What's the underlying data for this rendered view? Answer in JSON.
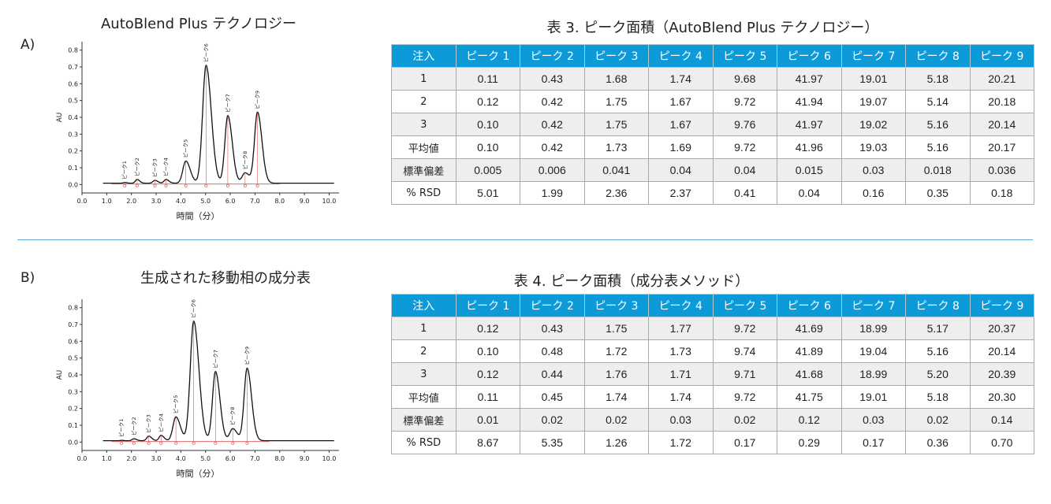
{
  "panel_a": {
    "label": "A)",
    "chart_title": "AutoBlend Plus テクノロジー",
    "table_title": "表 3. ピーク面積（AutoBlend Plus テクノロジー）"
  },
  "panel_b": {
    "label": "B)",
    "chart_title": "生成された移動相の成分表",
    "table_title": "表 4. ピーク面積（成分表メソッド）"
  },
  "table_headers": [
    "注入",
    "ピーク 1",
    "ピーク 2",
    "ピーク 3",
    "ピーク 4",
    "ピーク 5",
    "ピーク 6",
    "ピーク 7",
    "ピーク 8",
    "ピーク 9"
  ],
  "table3_rows": [
    [
      "1",
      "0.11",
      "0.43",
      "1.68",
      "1.74",
      "9.68",
      "41.97",
      "19.01",
      "5.18",
      "20.21"
    ],
    [
      "2",
      "0.12",
      "0.42",
      "1.75",
      "1.67",
      "9.72",
      "41.94",
      "19.07",
      "5.14",
      "20.18"
    ],
    [
      "3",
      "0.10",
      "0.42",
      "1.75",
      "1.67",
      "9.76",
      "41.97",
      "19.02",
      "5.16",
      "20.14"
    ],
    [
      "平均値",
      "0.10",
      "0.42",
      "1.73",
      "1.69",
      "9.72",
      "41.96",
      "19.03",
      "5.16",
      "20.17"
    ],
    [
      "標準偏差",
      "0.005",
      "0.006",
      "0.041",
      "0.04",
      "0.04",
      "0.015",
      "0.03",
      "0.018",
      "0.036"
    ],
    [
      "% RSD",
      "5.01",
      "1.99",
      "2.36",
      "2.37",
      "0.41",
      "0.04",
      "0.16",
      "0.35",
      "0.18"
    ]
  ],
  "table4_rows": [
    [
      "1",
      "0.12",
      "0.43",
      "1.75",
      "1.77",
      "9.72",
      "41.69",
      "18.99",
      "5.17",
      "20.37"
    ],
    [
      "2",
      "0.10",
      "0.48",
      "1.72",
      "1.73",
      "9.74",
      "41.89",
      "19.04",
      "5.16",
      "20.14"
    ],
    [
      "3",
      "0.12",
      "0.44",
      "1.76",
      "1.71",
      "9.71",
      "41.68",
      "18.99",
      "5.20",
      "20.39"
    ],
    [
      "平均値",
      "0.11",
      "0.45",
      "1.74",
      "1.74",
      "9.72",
      "41.75",
      "19.01",
      "5.18",
      "20.30"
    ],
    [
      "標準偏差",
      "0.01",
      "0.02",
      "0.02",
      "0.03",
      "0.02",
      "0.12",
      "0.03",
      "0.02",
      "0.14"
    ],
    [
      "% RSD",
      "8.67",
      "5.35",
      "1.26",
      "1.72",
      "0.17",
      "0.29",
      "0.17",
      "0.36",
      "0.70"
    ]
  ],
  "chart_data": [
    {
      "type": "line",
      "title": "AutoBlend Plus テクノロジー",
      "xlabel": "時間（分）",
      "ylabel": "AU",
      "xlim": [
        0,
        10.4
      ],
      "ylim": [
        -0.05,
        0.85
      ],
      "x_ticks": [
        "0.0",
        "1.0",
        "2.0",
        "3.0",
        "4.0",
        "5.0",
        "6.0",
        "7.0",
        "8.0",
        "9.0",
        "10.0"
      ],
      "y_ticks": [
        "0.0",
        "0.1",
        "0.2",
        "0.3",
        "0.4",
        "0.5",
        "0.6",
        "0.7",
        "0.8"
      ],
      "baseline": 0.008,
      "peaks": [
        {
          "label": "ピーク1",
          "x": 1.73,
          "y": 0.012
        },
        {
          "label": "ピーク2",
          "x": 2.23,
          "y": 0.03
        },
        {
          "label": "ピーク3",
          "x": 2.95,
          "y": 0.025
        },
        {
          "label": "ピーク4",
          "x": 3.4,
          "y": 0.03
        },
        {
          "label": "ピーク5",
          "x": 4.2,
          "y": 0.14
        },
        {
          "label": "ピーク6",
          "x": 5.02,
          "y": 0.71
        },
        {
          "label": "ピーク7",
          "x": 5.9,
          "y": 0.41
        },
        {
          "label": "ピーク8",
          "x": 6.6,
          "y": 0.07
        },
        {
          "label": "ピーク9",
          "x": 7.1,
          "y": 0.43
        }
      ],
      "series_color": "#111111",
      "marker_color": "#e05555"
    },
    {
      "type": "line",
      "title": "生成された移動相の成分表",
      "xlabel": "時間（分）",
      "ylabel": "AU",
      "xlim": [
        0,
        10.4
      ],
      "ylim": [
        -0.05,
        0.85
      ],
      "x_ticks": [
        "0.0",
        "1.0",
        "2.0",
        "3.0",
        "4.0",
        "5.0",
        "6.0",
        "7.0",
        "8.0",
        "9.0",
        "10.0"
      ],
      "y_ticks": [
        "0.0",
        "0.1",
        "0.2",
        "0.3",
        "0.4",
        "0.5",
        "0.6",
        "0.7",
        "0.8"
      ],
      "baseline": 0.008,
      "peaks": [
        {
          "label": "ピーク1",
          "x": 1.6,
          "y": 0.01
        },
        {
          "label": "ピーク2",
          "x": 2.1,
          "y": 0.02
        },
        {
          "label": "ピーク3",
          "x": 2.7,
          "y": 0.035
        },
        {
          "label": "ピーク4",
          "x": 3.2,
          "y": 0.04
        },
        {
          "label": "ピーク5",
          "x": 3.8,
          "y": 0.15
        },
        {
          "label": "ピーク6",
          "x": 4.52,
          "y": 0.72
        },
        {
          "label": "ピーク7",
          "x": 5.4,
          "y": 0.42
        },
        {
          "label": "ピーク8",
          "x": 6.1,
          "y": 0.08
        },
        {
          "label": "ピーク9",
          "x": 6.68,
          "y": 0.44
        }
      ],
      "series_color": "#111111",
      "marker_color": "#e05555"
    }
  ]
}
